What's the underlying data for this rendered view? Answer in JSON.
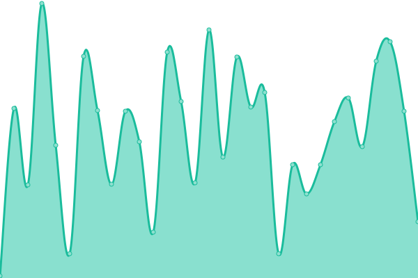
{
  "chart_data": {
    "type": "area",
    "x": [
      0,
      1,
      2,
      3,
      4,
      5,
      6,
      7,
      8,
      9,
      10,
      11,
      12,
      13,
      14,
      15,
      16,
      17,
      18,
      19,
      20,
      21,
      22,
      23,
      24,
      25,
      26,
      27,
      28,
      29,
      30
    ],
    "values": [
      3,
      244,
      134,
      395,
      191,
      35,
      319,
      241,
      135,
      240,
      196,
      66,
      325,
      254,
      137,
      357,
      174,
      318,
      246,
      267,
      35,
      163,
      121,
      163,
      225,
      259,
      189,
      312,
      340,
      240,
      81
    ],
    "ylim": [
      0,
      400
    ],
    "xlim": [
      0,
      30
    ],
    "grid": false,
    "smooth": true,
    "colors": {
      "line": "#1abc9c",
      "fill": "#89e0cf",
      "marker_fill": "#8ee0cf"
    }
  }
}
